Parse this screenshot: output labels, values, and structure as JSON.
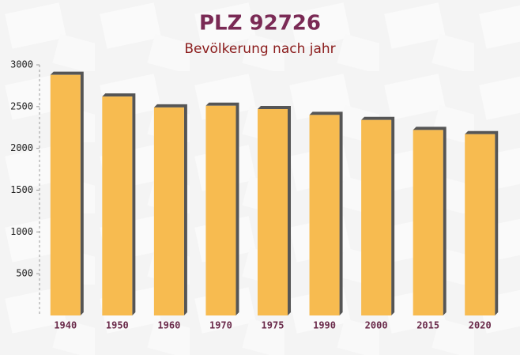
{
  "chart_data": {
    "type": "bar",
    "title": "PLZ 92726",
    "subtitle": "Bevölkerung nach jahr",
    "categories": [
      "1940",
      "1950",
      "1960",
      "1970",
      "1975",
      "1990",
      "2000",
      "2015",
      "2020"
    ],
    "values": [
      2880,
      2620,
      2490,
      2510,
      2470,
      2400,
      2340,
      2220,
      2170
    ],
    "color": "#f7bb50",
    "ylim": [
      0,
      3000
    ],
    "yticks": [
      500,
      1000,
      1500,
      2000,
      2500,
      3000
    ]
  }
}
